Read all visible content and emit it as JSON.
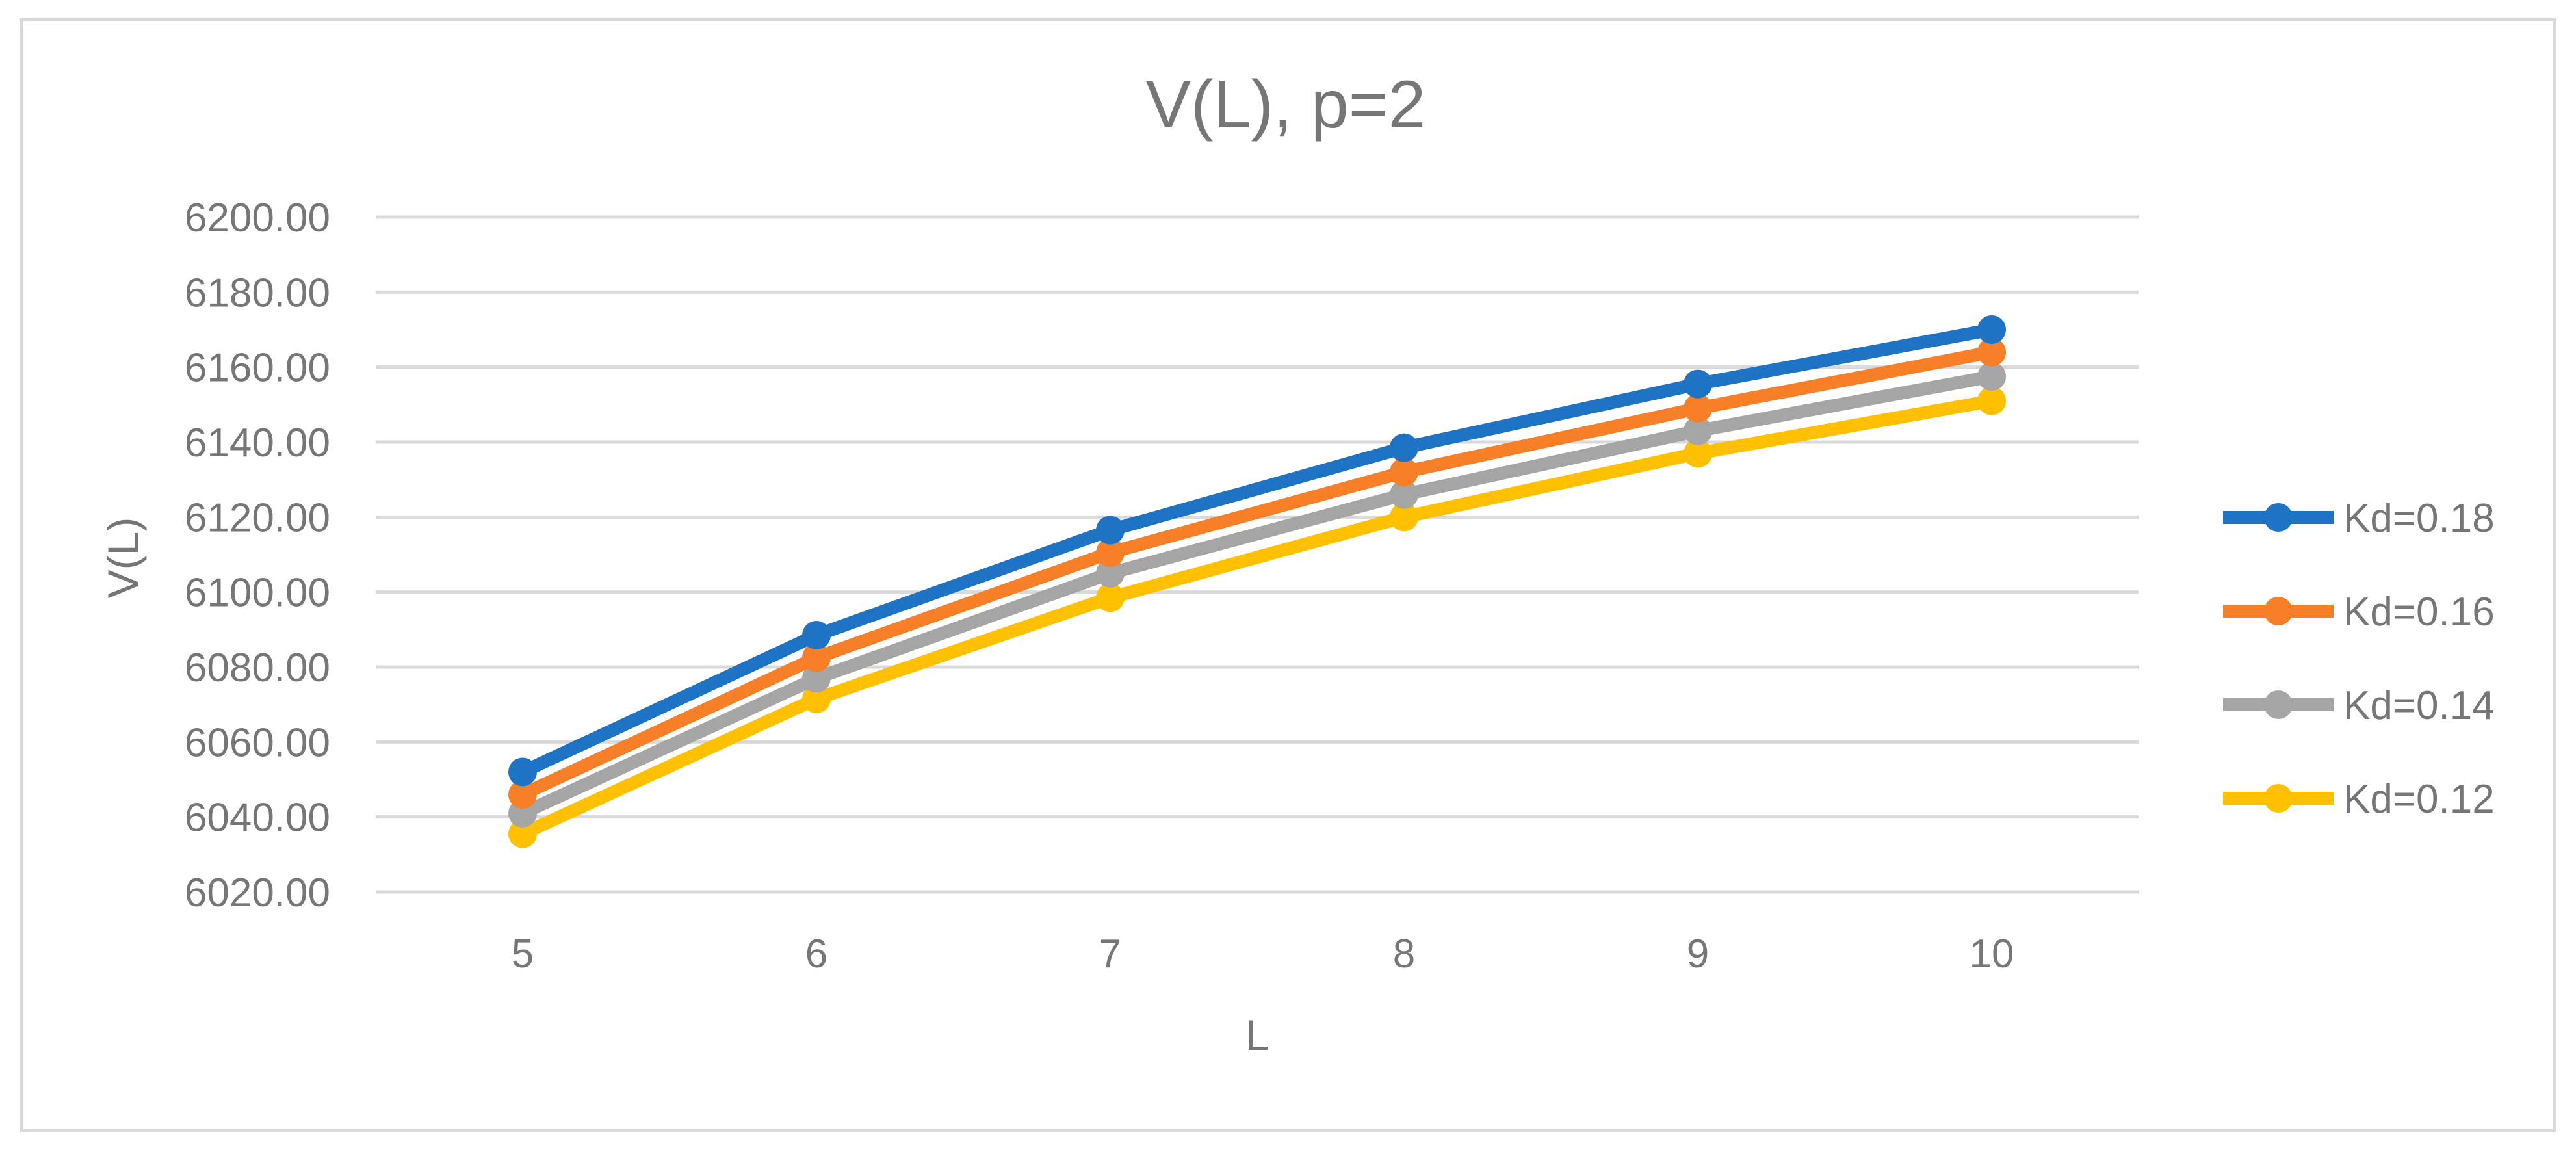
{
  "chart_data": {
    "type": "line",
    "title": "V(L), p=2",
    "xlabel": "L",
    "ylabel": "V(L)",
    "categories": [
      "5",
      "6",
      "7",
      "8",
      "9",
      "10"
    ],
    "x": [
      5,
      6,
      7,
      8,
      9,
      10
    ],
    "ylim": [
      6020,
      6200
    ],
    "yticks": [
      6020,
      6040,
      6060,
      6080,
      6100,
      6120,
      6140,
      6160,
      6180,
      6200
    ],
    "ytick_labels": [
      "6020.00",
      "6040.00",
      "6060.00",
      "6080.00",
      "6100.00",
      "6120.00",
      "6140.00",
      "6160.00",
      "6180.00",
      "6200.00"
    ],
    "grid": true,
    "legend_position": "right",
    "drop_lines": true,
    "series": [
      {
        "name": "Kd=0.18",
        "color": "#1f73c4",
        "values": [
          6052,
          6088.5,
          6116.5,
          6138.5,
          6155.5,
          6170
        ]
      },
      {
        "name": "Kd=0.16",
        "color": "#f77f28",
        "values": [
          6046,
          6082.5,
          6110.5,
          6132,
          6149,
          6164
        ]
      },
      {
        "name": "Kd=0.14",
        "color": "#a5a5a5",
        "values": [
          6041,
          6077,
          6105,
          6126,
          6143,
          6157.5
        ]
      },
      {
        "name": "Kd=0.12",
        "color": "#ffc000",
        "values": [
          6035.5,
          6071.5,
          6098.5,
          6120,
          6137,
          6151
        ]
      }
    ]
  }
}
